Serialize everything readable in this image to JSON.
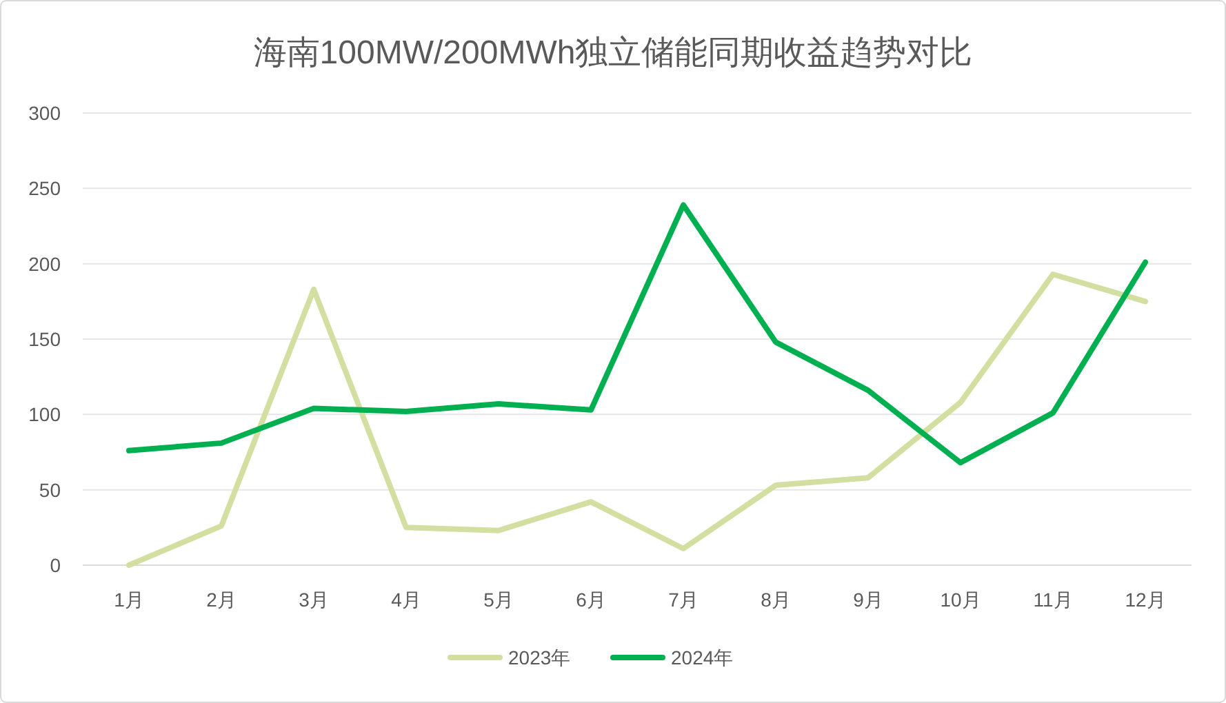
{
  "chart_data": {
    "type": "line",
    "title": "海南100MW/200MWh独立储能同期收益趋势对比",
    "categories": [
      "1月",
      "2月",
      "3月",
      "4月",
      "5月",
      "6月",
      "7月",
      "8月",
      "9月",
      "10月",
      "11月",
      "12月"
    ],
    "series": [
      {
        "name": "2023年",
        "color": "#d3dfa0",
        "values": [
          0,
          26,
          183,
          25,
          23,
          42,
          11,
          53,
          58,
          108,
          193,
          175
        ]
      },
      {
        "name": "2024年",
        "color": "#00b050",
        "values": [
          76,
          81,
          104,
          102,
          107,
          103,
          239,
          148,
          116,
          68,
          101,
          201
        ]
      }
    ],
    "ylim": [
      0,
      300
    ],
    "yticks": [
      0,
      50,
      100,
      150,
      200,
      250,
      300
    ],
    "grid": "y",
    "legend": "bottom",
    "marker": "none",
    "line_style": "solid"
  }
}
